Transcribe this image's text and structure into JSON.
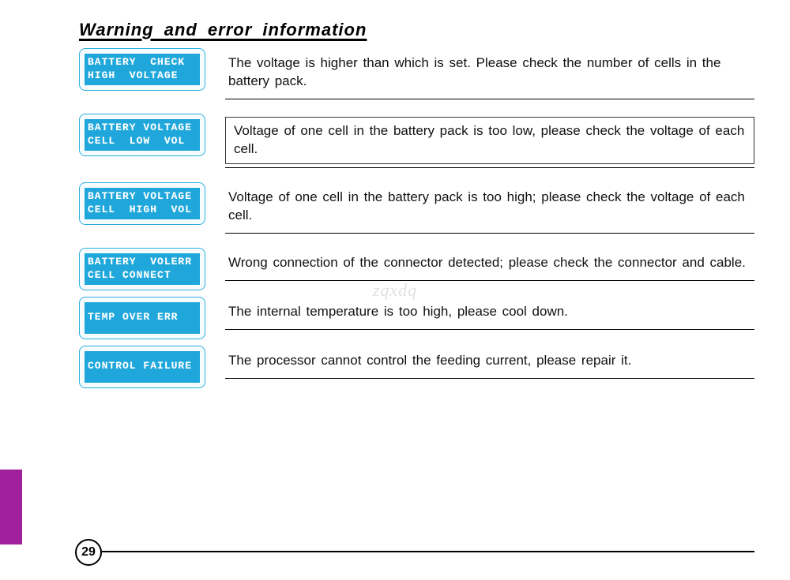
{
  "title": "Warning  and  error  information",
  "page_number": "29",
  "watermark": "zqxdq",
  "colors": {
    "lcd_bg": "#1fa7db",
    "lcd_border": "#29b0e0",
    "lcd_text": "#ffffff",
    "side_tab": "#a1209c",
    "text": "#111111",
    "divider": "#000000"
  },
  "rows": [
    {
      "lcd_line1": "BATTERY  CHECK",
      "lcd_line2": "HIGH  VOLTAGE",
      "description": "The voltage is higher than which is set. Please check the number of cells in the battery pack.",
      "boxed": false
    },
    {
      "lcd_line1": "BATTERY VOLTAGE",
      "lcd_line2": "CELL  LOW  VOL",
      "description": "Voltage of one cell in the battery pack is too low, please check the voltage of each cell.",
      "boxed": true
    },
    {
      "lcd_line1": "BATTERY VOLTAGE",
      "lcd_line2": "CELL  HIGH  VOL",
      "description": "Voltage of one cell in the battery pack is too high; please check the voltage of each cell.",
      "boxed": false
    },
    {
      "lcd_line1": "BATTERY  VOLERR",
      "lcd_line2": "CELL CONNECT",
      "description": "Wrong connection of the connector detected; please check the connector and cable.",
      "boxed": false
    },
    {
      "lcd_line1": "TEMP OVER ERR",
      "lcd_line2": "",
      "description": "The internal temperature is too high, please cool down.",
      "boxed": false
    },
    {
      "lcd_line1": "CONTROL FAILURE",
      "lcd_line2": "",
      "description": "The processor cannot control the feeding current, please repair it.",
      "boxed": false
    }
  ]
}
